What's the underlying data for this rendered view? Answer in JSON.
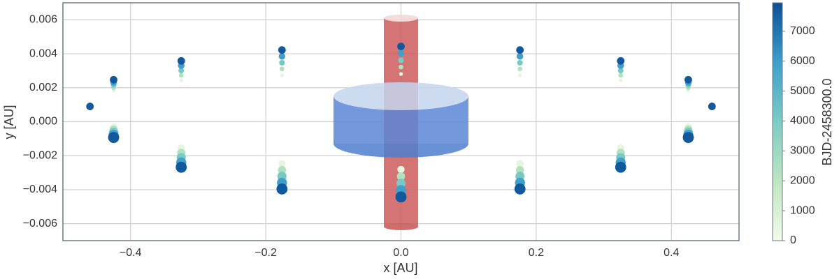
{
  "chart_data": {
    "type": "scatter",
    "xlabel": "x [AU]",
    "ylabel": "y [AU]",
    "colorbar_label": "BJD-2458300.0",
    "xlim": [
      -0.5,
      0.5
    ],
    "xticks": [
      {
        "value": -0.4,
        "label": "−0.4"
      },
      {
        "value": -0.2,
        "label": "−0.2"
      },
      {
        "value": 0,
        "label": "0.0"
      },
      0.2,
      0.4
    ],
    "ylim": [
      -0.007,
      0.007
    ],
    "yticks": [
      {
        "value": -0.006,
        "label": "−0.006"
      },
      {
        "value": -0.004,
        "label": "−0.004"
      },
      {
        "value": -0.002,
        "label": "−0.002"
      },
      {
        "value": 0,
        "label": "0.000"
      },
      0.002,
      0.004,
      0.006
    ],
    "clim": [
      0,
      7950
    ],
    "cticks": [
      0,
      1000,
      2000,
      3000,
      4000,
      5000,
      6000,
      7000
    ],
    "colormap": [
      "#f2fae8",
      "#bde5bf",
      "#7cccc4",
      "#3e9fcb",
      "#0a4f95"
    ],
    "grid": true,
    "x": [
      0.46,
      0.425,
      0.325,
      0.176,
      0,
      -0.176,
      -0.325,
      -0.425,
      -0.46,
      -0.425,
      -0.325,
      -0.176,
      0,
      0.176,
      0.325,
      0.425
    ],
    "orbits": [
      {
        "time": 500,
        "y": [
          0.0009,
          0.00185,
          0.00244,
          0.00273,
          0.00281,
          0.00273,
          0.00244,
          0.00185,
          0.0009,
          -0.00031,
          -0.00154,
          -0.00247,
          -0.00281,
          -0.00247,
          -0.00154,
          -0.00031
        ]
      },
      {
        "time": 2300,
        "y": [
          0.0009,
          0.002,
          0.00273,
          0.00311,
          0.00322,
          0.00311,
          0.00273,
          0.002,
          0.0009,
          -0.00046,
          -0.00183,
          -0.00285,
          -0.00322,
          -0.00285,
          -0.00183,
          -0.00046
        ]
      },
      {
        "time": 4100,
        "y": [
          0.0009,
          0.00216,
          0.00301,
          0.00347,
          0.00362,
          0.00347,
          0.00301,
          0.00216,
          0.0009,
          -0.00062,
          -0.00211,
          -0.00321,
          -0.00362,
          -0.00321,
          -0.00211,
          -0.00062
        ]
      },
      {
        "time": 5900,
        "y": [
          0.0009,
          0.00231,
          0.0033,
          0.00385,
          0.00403,
          0.00385,
          0.0033,
          0.00231,
          0.0009,
          -0.00077,
          -0.0024,
          -0.00359,
          -0.00403,
          -0.00359,
          -0.0024,
          -0.00077
        ]
      },
      {
        "time": 7700,
        "y": [
          0.0009,
          0.00247,
          0.00358,
          0.00422,
          0.00443,
          0.00422,
          0.00358,
          0.00247,
          0.0009,
          -0.00093,
          -0.00268,
          -0.00396,
          -0.00443,
          -0.00396,
          -0.00268,
          -0.00093
        ]
      }
    ]
  }
}
